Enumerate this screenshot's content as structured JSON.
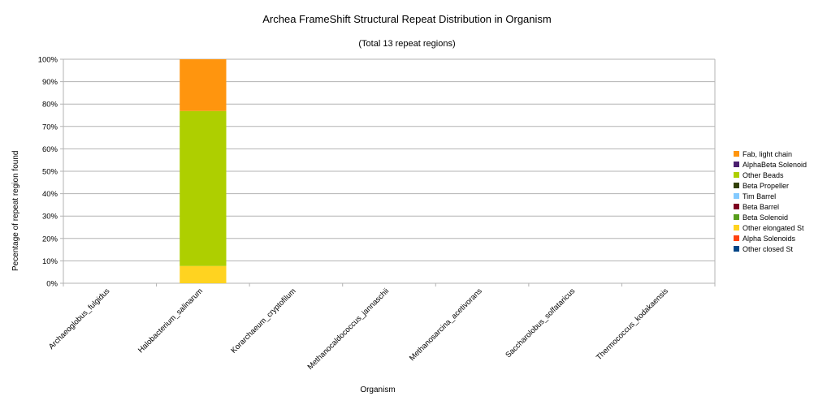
{
  "chart_data": {
    "type": "bar",
    "stacked": true,
    "title": "Archea FrameShift Structural Repeat Distribution in Organism",
    "subtitle": "(Total 13 repeat regions)",
    "xlabel": "Organism",
    "ylabel": "Pecentage of repeat region found",
    "ylim": [
      0,
      100
    ],
    "y_ticks": [
      "0%",
      "10%",
      "20%",
      "30%",
      "40%",
      "50%",
      "60%",
      "70%",
      "80%",
      "90%",
      "100%"
    ],
    "grid": true,
    "legend_position": "right",
    "categories": [
      "Archaeoglobus_fulgidus",
      "Halobacterium_salinarum",
      "Korarchaeum_cryptofilum",
      "Methanocaldococcus_jannaschii",
      "Methanosarcina_acetivorans",
      "Saccharolobus_solfataricus",
      "Thermococcus_kodakaensis"
    ],
    "series": [
      {
        "name": "Other closed St",
        "color": "#004586",
        "values": [
          0,
          0,
          0,
          0,
          0,
          0,
          0
        ]
      },
      {
        "name": "Alpha Solenoids",
        "color": "#ff420e",
        "values": [
          0,
          0,
          0,
          0,
          0,
          0,
          0
        ]
      },
      {
        "name": "Other elongated St",
        "color": "#ffd320",
        "values": [
          0,
          7.7,
          0,
          0,
          0,
          0,
          0
        ]
      },
      {
        "name": "Beta Solenoid",
        "color": "#579d1c",
        "values": [
          0,
          0,
          0,
          0,
          0,
          0,
          0
        ]
      },
      {
        "name": "Beta Barrel",
        "color": "#7e0021",
        "values": [
          0,
          0,
          0,
          0,
          0,
          0,
          0
        ]
      },
      {
        "name": "Tim Barrel",
        "color": "#83caff",
        "values": [
          0,
          0,
          0,
          0,
          0,
          0,
          0
        ]
      },
      {
        "name": "Beta Propeller",
        "color": "#314004",
        "values": [
          0,
          0,
          0,
          0,
          0,
          0,
          0
        ]
      },
      {
        "name": "Other Beads",
        "color": "#aecf00",
        "values": [
          0,
          69.2,
          0,
          0,
          0,
          0,
          0
        ]
      },
      {
        "name": "AlphaBeta Solenoid",
        "color": "#4b1f6f",
        "values": [
          0,
          0,
          0,
          0,
          0,
          0,
          0
        ]
      },
      {
        "name": "Fab, light chain",
        "color": "#ff950e",
        "values": [
          0,
          23.1,
          0,
          0,
          0,
          0,
          0
        ]
      }
    ]
  }
}
